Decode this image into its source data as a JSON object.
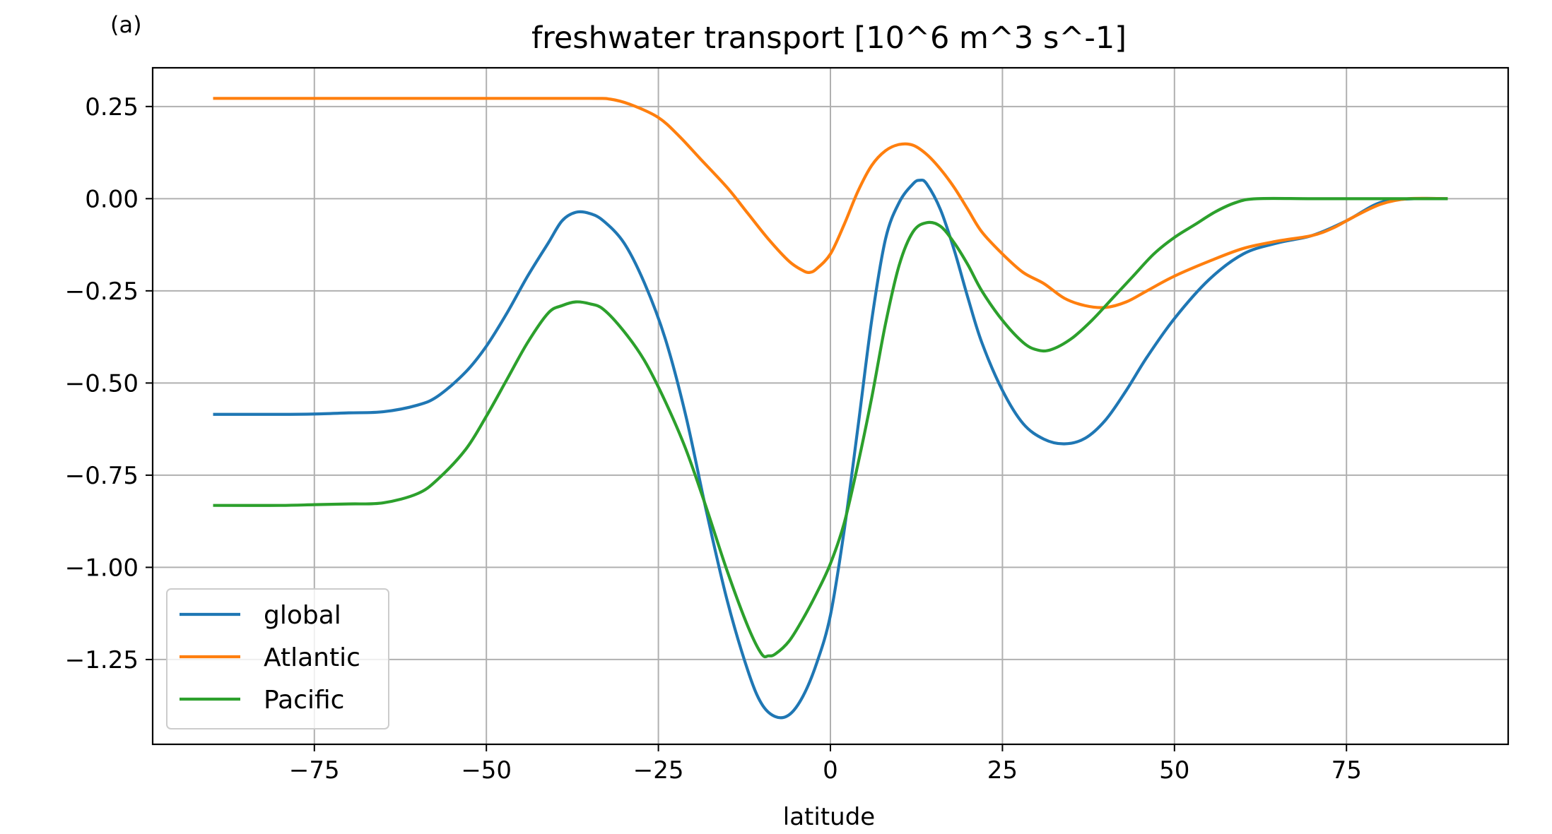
{
  "panel_label": "(a)",
  "chart_data": {
    "type": "line",
    "title": "freshwater transport [10^6 m^3 s^-1]",
    "xlabel": "latitude",
    "ylabel": "",
    "xlim": [
      -98.5,
      98.5
    ],
    "ylim": [
      -1.48,
      0.355
    ],
    "xticks": [
      -75,
      -50,
      -25,
      0,
      25,
      50,
      75
    ],
    "xtick_labels": [
      "−75",
      "−50",
      "−25",
      "0",
      "25",
      "50",
      "75"
    ],
    "yticks": [
      0.25,
      0,
      -0.25,
      -0.5,
      -0.75,
      -1,
      -1.25
    ],
    "ytick_labels": [
      "0.25",
      "0.00",
      "−0.25",
      "−0.50",
      "−0.75",
      "−1.00",
      "−1.25"
    ],
    "grid": true,
    "legend_position": "lower-left",
    "series": [
      {
        "name": "global",
        "color": "#1f77b4",
        "points": [
          [
            -89.5,
            -0.585
          ],
          [
            -80,
            -0.585
          ],
          [
            -75,
            -0.584
          ],
          [
            -70,
            -0.581
          ],
          [
            -65,
            -0.578
          ],
          [
            -60,
            -0.56
          ],
          [
            -57,
            -0.535
          ],
          [
            -53,
            -0.47
          ],
          [
            -50,
            -0.4
          ],
          [
            -47,
            -0.31
          ],
          [
            -44,
            -0.21
          ],
          [
            -41,
            -0.12
          ],
          [
            -39,
            -0.06
          ],
          [
            -37,
            -0.037
          ],
          [
            -35,
            -0.04
          ],
          [
            -33,
            -0.06
          ],
          [
            -30,
            -0.12
          ],
          [
            -27,
            -0.23
          ],
          [
            -24,
            -0.38
          ],
          [
            -21,
            -0.59
          ],
          [
            -18,
            -0.85
          ],
          [
            -15,
            -1.09
          ],
          [
            -12,
            -1.28
          ],
          [
            -10,
            -1.37
          ],
          [
            -8,
            -1.405
          ],
          [
            -6,
            -1.4
          ],
          [
            -4,
            -1.35
          ],
          [
            -2,
            -1.26
          ],
          [
            0,
            -1.13
          ],
          [
            2,
            -0.9
          ],
          [
            4,
            -0.62
          ],
          [
            6,
            -0.33
          ],
          [
            8,
            -0.11
          ],
          [
            10,
            -0.01
          ],
          [
            12,
            0.04
          ],
          [
            13,
            0.05
          ],
          [
            14,
            0.04
          ],
          [
            16,
            -0.03
          ],
          [
            18,
            -0.14
          ],
          [
            20,
            -0.27
          ],
          [
            22,
            -0.39
          ],
          [
            25,
            -0.52
          ],
          [
            28,
            -0.61
          ],
          [
            31,
            -0.652
          ],
          [
            34,
            -0.665
          ],
          [
            37,
            -0.65
          ],
          [
            40,
            -0.6
          ],
          [
            43,
            -0.52
          ],
          [
            46,
            -0.43
          ],
          [
            50,
            -0.325
          ],
          [
            55,
            -0.22
          ],
          [
            60,
            -0.15
          ],
          [
            65,
            -0.12
          ],
          [
            70,
            -0.1
          ],
          [
            75,
            -0.06
          ],
          [
            80,
            -0.01
          ],
          [
            85,
            0.0
          ],
          [
            89.5,
            0.0
          ]
        ]
      },
      {
        "name": "Atlantic",
        "color": "#ff7f0e",
        "points": [
          [
            -89.5,
            0.272
          ],
          [
            -70,
            0.272
          ],
          [
            -50,
            0.272
          ],
          [
            -35,
            0.272
          ],
          [
            -32,
            0.27
          ],
          [
            -29,
            0.255
          ],
          [
            -25,
            0.22
          ],
          [
            -22,
            0.17
          ],
          [
            -19,
            0.11
          ],
          [
            -15,
            0.03
          ],
          [
            -12,
            -0.04
          ],
          [
            -9,
            -0.11
          ],
          [
            -6,
            -0.17
          ],
          [
            -4,
            -0.195
          ],
          [
            -3,
            -0.2
          ],
          [
            -2,
            -0.19
          ],
          [
            0,
            -0.15
          ],
          [
            2,
            -0.07
          ],
          [
            4,
            0.02
          ],
          [
            6,
            0.09
          ],
          [
            8,
            0.13
          ],
          [
            10,
            0.147
          ],
          [
            12,
            0.145
          ],
          [
            14,
            0.12
          ],
          [
            16,
            0.08
          ],
          [
            18,
            0.03
          ],
          [
            20,
            -0.03
          ],
          [
            22,
            -0.09
          ],
          [
            25,
            -0.15
          ],
          [
            28,
            -0.2
          ],
          [
            31,
            -0.23
          ],
          [
            34,
            -0.27
          ],
          [
            37,
            -0.29
          ],
          [
            40,
            -0.295
          ],
          [
            43,
            -0.28
          ],
          [
            46,
            -0.25
          ],
          [
            50,
            -0.21
          ],
          [
            55,
            -0.17
          ],
          [
            60,
            -0.135
          ],
          [
            65,
            -0.115
          ],
          [
            70,
            -0.1
          ],
          [
            73,
            -0.08
          ],
          [
            76,
            -0.05
          ],
          [
            80,
            -0.015
          ],
          [
            84,
            0.0
          ],
          [
            89.5,
            0.0
          ]
        ]
      },
      {
        "name": "Pacific",
        "color": "#2ca02c",
        "points": [
          [
            -89.5,
            -0.832
          ],
          [
            -80,
            -0.832
          ],
          [
            -75,
            -0.83
          ],
          [
            -70,
            -0.828
          ],
          [
            -65,
            -0.825
          ],
          [
            -60,
            -0.8
          ],
          [
            -57,
            -0.76
          ],
          [
            -53,
            -0.68
          ],
          [
            -50,
            -0.59
          ],
          [
            -47,
            -0.49
          ],
          [
            -44,
            -0.39
          ],
          [
            -41,
            -0.31
          ],
          [
            -39,
            -0.29
          ],
          [
            -37,
            -0.28
          ],
          [
            -35,
            -0.285
          ],
          [
            -33,
            -0.3
          ],
          [
            -30,
            -0.36
          ],
          [
            -27,
            -0.44
          ],
          [
            -24,
            -0.55
          ],
          [
            -21,
            -0.68
          ],
          [
            -18,
            -0.84
          ],
          [
            -15,
            -1.01
          ],
          [
            -12,
            -1.16
          ],
          [
            -10,
            -1.235
          ],
          [
            -9,
            -1.24
          ],
          [
            -8,
            -1.235
          ],
          [
            -6,
            -1.2
          ],
          [
            -4,
            -1.14
          ],
          [
            -2,
            -1.07
          ],
          [
            0,
            -0.99
          ],
          [
            2,
            -0.88
          ],
          [
            4,
            -0.72
          ],
          [
            6,
            -0.54
          ],
          [
            8,
            -0.34
          ],
          [
            10,
            -0.18
          ],
          [
            12,
            -0.09
          ],
          [
            14,
            -0.065
          ],
          [
            16,
            -0.075
          ],
          [
            18,
            -0.12
          ],
          [
            20,
            -0.18
          ],
          [
            22,
            -0.25
          ],
          [
            25,
            -0.33
          ],
          [
            28,
            -0.39
          ],
          [
            30,
            -0.41
          ],
          [
            32,
            -0.41
          ],
          [
            35,
            -0.38
          ],
          [
            38,
            -0.33
          ],
          [
            41,
            -0.27
          ],
          [
            44,
            -0.21
          ],
          [
            47,
            -0.15
          ],
          [
            50,
            -0.105
          ],
          [
            53,
            -0.07
          ],
          [
            56,
            -0.035
          ],
          [
            59,
            -0.01
          ],
          [
            62,
            0.0
          ],
          [
            70,
            0.0
          ],
          [
            80,
            0.0
          ],
          [
            89.5,
            0.0
          ]
        ]
      }
    ]
  }
}
